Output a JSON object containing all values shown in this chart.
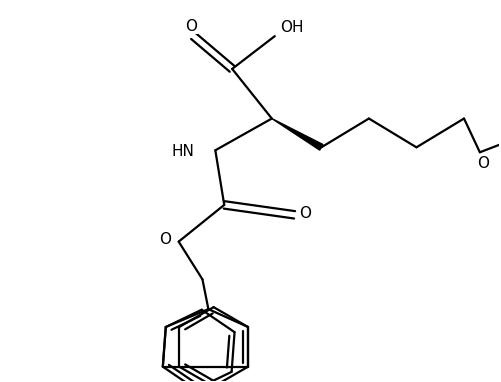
{
  "background_color": "#ffffff",
  "line_color": "#000000",
  "line_width": 1.6,
  "figsize": [
    5.01,
    3.82
  ],
  "dpi": 100,
  "xlim": [
    0,
    10
  ],
  "ylim": [
    0,
    7.64
  ]
}
